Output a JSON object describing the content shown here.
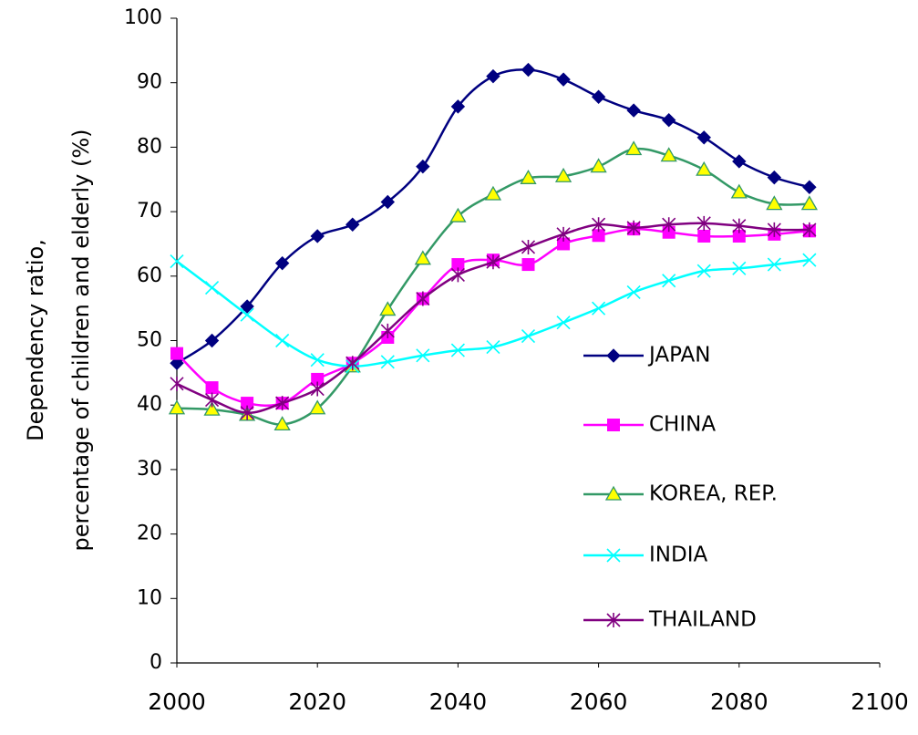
{
  "chart_data": {
    "type": "line",
    "ylabel": [
      "Dependency ratio,",
      "percentage of children and elderly (%)"
    ],
    "x": [
      2000,
      2005,
      2010,
      2015,
      2020,
      2025,
      2030,
      2035,
      2040,
      2045,
      2050,
      2055,
      2060,
      2065,
      2070,
      2075,
      2080,
      2085,
      2090
    ],
    "xlim": [
      2000,
      2100
    ],
    "xticks": [
      2000,
      2020,
      2040,
      2060,
      2080,
      2100
    ],
    "ylim": [
      0,
      100
    ],
    "yticks": [
      0,
      10,
      20,
      30,
      40,
      50,
      60,
      70,
      80,
      90,
      100
    ],
    "series": [
      {
        "name": "JAPAN",
        "color": "#000080",
        "marker": "diamond",
        "marker_fill": "#000080",
        "values": [
          46.5,
          50,
          55.3,
          62,
          66.2,
          68,
          71.5,
          77,
          86.3,
          91,
          92,
          90.5,
          87.8,
          85.7,
          84.2,
          81.5,
          77.8,
          75.3,
          73.8
        ]
      },
      {
        "name": "CHINA",
        "color": "#ff00ff",
        "marker": "square",
        "marker_fill": "#ff00ff",
        "values": [
          48,
          42.7,
          40.3,
          40.3,
          44,
          46.5,
          50.5,
          56.5,
          61.8,
          62.5,
          61.8,
          65,
          66.3,
          67.3,
          66.8,
          66.2,
          66.2,
          66.5,
          67
        ]
      },
      {
        "name": "KOREA, REP.",
        "color": "#339966",
        "marker": "triangle",
        "marker_fill": "#ffff00",
        "values": [
          39.5,
          39.3,
          38.5,
          37,
          39.5,
          46,
          54.8,
          62.7,
          69.3,
          72.7,
          75.2,
          75.5,
          77,
          79.7,
          78.7,
          76.5,
          73,
          71.2,
          71.2
        ]
      },
      {
        "name": "INDIA",
        "color": "#00ffff",
        "marker": "x",
        "marker_fill": "#00ffff",
        "values": [
          62.3,
          58.2,
          54,
          50,
          47,
          46,
          46.7,
          47.7,
          48.5,
          49,
          50.7,
          52.8,
          55,
          57.5,
          59.3,
          60.8,
          61.2,
          61.8,
          62.5
        ]
      },
      {
        "name": "THAILAND",
        "color": "#800080",
        "marker": "star",
        "marker_fill": "#800080",
        "values": [
          43.3,
          40.8,
          38.8,
          40.3,
          42.5,
          46.5,
          51.5,
          56.5,
          60.2,
          62.2,
          64.5,
          66.5,
          68,
          67.5,
          68,
          68.2,
          67.8,
          67.2,
          67.2
        ]
      }
    ]
  }
}
